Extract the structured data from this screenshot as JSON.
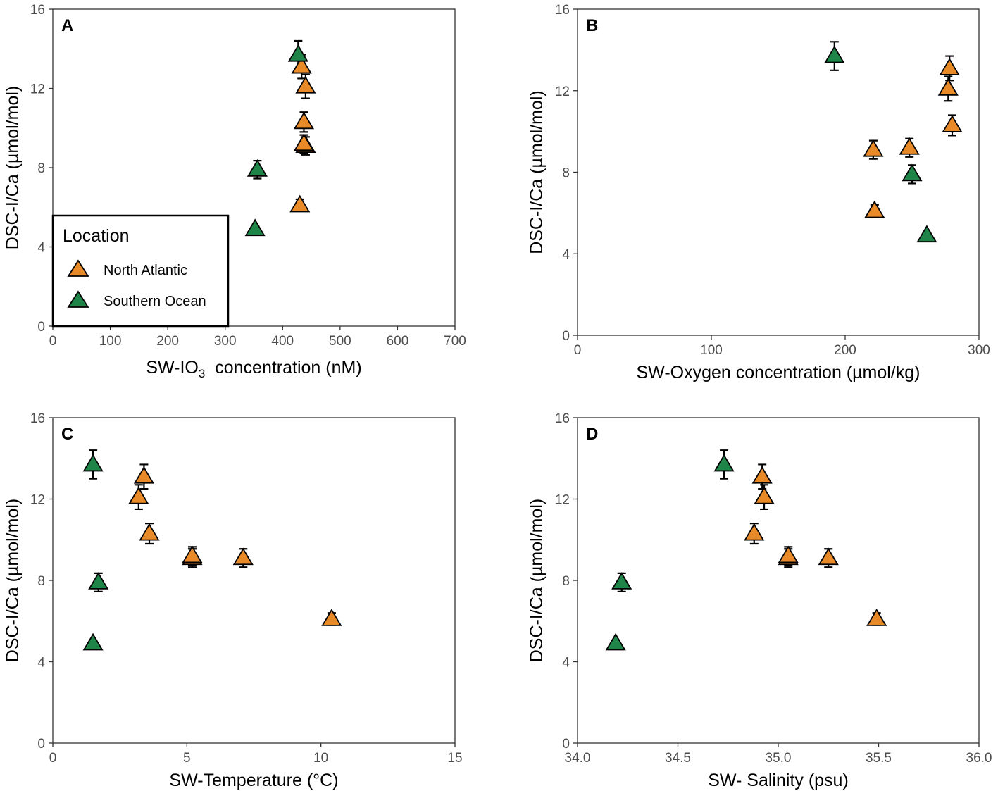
{
  "legend": {
    "title": "Location",
    "entries": [
      {
        "label": "North Atlantic",
        "color": "#E98A28"
      },
      {
        "label": "Southern Ocean",
        "color": "#1E8448"
      }
    ]
  },
  "chart_data": [
    {
      "type": "scatter",
      "panel": "A",
      "title": "",
      "xlabel": "SW-IO",
      "xlabel_sub": "3",
      "xlabel_rest": "  concentration (nM)",
      "ylabel": "DSC-I/Ca (µmol/mol)",
      "xlim": [
        0,
        700
      ],
      "ylim": [
        0,
        16
      ],
      "xticks": [
        0,
        100,
        200,
        300,
        400,
        500,
        600,
        700
      ],
      "xtick_labels": [
        "0",
        "100",
        "200",
        "300",
        "400",
        "500",
        "600",
        "700"
      ],
      "yticks": [
        0,
        4,
        8,
        12,
        16
      ],
      "ytick_labels": [
        "0",
        "4",
        "8",
        "12",
        "16"
      ],
      "legend_position": "bottom-left",
      "series": [
        {
          "name": "North Atlantic",
          "points": [
            {
              "x": 433,
              "y": 13.1,
              "err": 0.6
            },
            {
              "x": 440,
              "y": 12.1,
              "err": 0.6
            },
            {
              "x": 437,
              "y": 10.3,
              "err": 0.5
            },
            {
              "x": 440,
              "y": 9.1,
              "err": 0.45
            },
            {
              "x": 437,
              "y": 9.2,
              "err": 0.45
            },
            {
              "x": 430,
              "y": 6.1,
              "err": 0.3
            }
          ]
        },
        {
          "name": "Southern Ocean",
          "points": [
            {
              "x": 427,
              "y": 13.7,
              "err": 0.7
            },
            {
              "x": 356,
              "y": 7.9,
              "err": 0.45
            },
            {
              "x": 352,
              "y": 4.9,
              "err": 0.15
            }
          ]
        }
      ]
    },
    {
      "type": "scatter",
      "panel": "B",
      "title": "",
      "xlabel": "SW-Oxygen concentration (µmol/kg)",
      "ylabel": "DSC-I/Ca (µmol/mol)",
      "xlim": [
        0,
        300
      ],
      "ylim": [
        0,
        16
      ],
      "xticks": [
        0,
        100,
        200,
        300
      ],
      "xtick_labels": [
        "0",
        "100",
        "200",
        "300"
      ],
      "yticks": [
        0,
        4,
        8,
        12,
        16
      ],
      "ytick_labels": [
        "0",
        "4",
        "8",
        "12",
        "16"
      ],
      "series": [
        {
          "name": "North Atlantic",
          "points": [
            {
              "x": 278,
              "y": 13.1,
              "err": 0.6
            },
            {
              "x": 277,
              "y": 12.1,
              "err": 0.6
            },
            {
              "x": 280,
              "y": 10.3,
              "err": 0.5
            },
            {
              "x": 221,
              "y": 9.1,
              "err": 0.45
            },
            {
              "x": 248,
              "y": 9.2,
              "err": 0.45
            },
            {
              "x": 222,
              "y": 6.1,
              "err": 0.3
            }
          ]
        },
        {
          "name": "Southern Ocean",
          "points": [
            {
              "x": 192,
              "y": 13.7,
              "err": 0.7
            },
            {
              "x": 250,
              "y": 7.9,
              "err": 0.45
            },
            {
              "x": 261,
              "y": 4.9,
              "err": 0.15
            }
          ]
        }
      ]
    },
    {
      "type": "scatter",
      "panel": "C",
      "title": "",
      "xlabel": "SW-Temperature (°C)",
      "ylabel": "DSC-I/Ca (µmol/mol)",
      "xlim": [
        0,
        15
      ],
      "ylim": [
        0,
        16
      ],
      "xticks": [
        0,
        5,
        10,
        15
      ],
      "xtick_labels": [
        "0",
        "5",
        "10",
        "15"
      ],
      "yticks": [
        0,
        4,
        8,
        12,
        16
      ],
      "ytick_labels": [
        "0",
        "4",
        "8",
        "12",
        "16"
      ],
      "series": [
        {
          "name": "North Atlantic",
          "points": [
            {
              "x": 3.4,
              "y": 13.1,
              "err": 0.6
            },
            {
              "x": 3.2,
              "y": 12.1,
              "err": 0.6
            },
            {
              "x": 3.6,
              "y": 10.3,
              "err": 0.5
            },
            {
              "x": 5.2,
              "y": 9.1,
              "err": 0.45
            },
            {
              "x": 5.2,
              "y": 9.2,
              "err": 0.45
            },
            {
              "x": 7.1,
              "y": 9.1,
              "err": 0.45
            },
            {
              "x": 10.4,
              "y": 6.1,
              "err": 0.3
            }
          ]
        },
        {
          "name": "Southern Ocean",
          "points": [
            {
              "x": 1.5,
              "y": 13.7,
              "err": 0.7
            },
            {
              "x": 1.7,
              "y": 7.9,
              "err": 0.45
            },
            {
              "x": 1.5,
              "y": 4.9,
              "err": 0.15
            }
          ]
        }
      ]
    },
    {
      "type": "scatter",
      "panel": "D",
      "title": "",
      "xlabel": "SW- Salinity (psu)",
      "ylabel": "DSC-I/Ca (µmol/mol)",
      "xlim": [
        34.0,
        36.0
      ],
      "ylim": [
        0,
        16
      ],
      "xticks": [
        34.0,
        34.5,
        35.0,
        35.5,
        36.0
      ],
      "xtick_labels": [
        "34.0",
        "34.5",
        "35.0",
        "35.5",
        "36.0"
      ],
      "yticks": [
        0,
        4,
        8,
        12,
        16
      ],
      "ytick_labels": [
        "0",
        "4",
        "8",
        "12",
        "16"
      ],
      "series": [
        {
          "name": "North Atlantic",
          "points": [
            {
              "x": 34.92,
              "y": 13.1,
              "err": 0.6
            },
            {
              "x": 34.93,
              "y": 12.1,
              "err": 0.6
            },
            {
              "x": 34.88,
              "y": 10.3,
              "err": 0.5
            },
            {
              "x": 35.05,
              "y": 9.1,
              "err": 0.45
            },
            {
              "x": 35.05,
              "y": 9.2,
              "err": 0.45
            },
            {
              "x": 35.25,
              "y": 9.1,
              "err": 0.45
            },
            {
              "x": 35.49,
              "y": 6.1,
              "err": 0.3
            }
          ]
        },
        {
          "name": "Southern Ocean",
          "points": [
            {
              "x": 34.73,
              "y": 13.7,
              "err": 0.7
            },
            {
              "x": 34.22,
              "y": 7.9,
              "err": 0.45
            },
            {
              "x": 34.19,
              "y": 4.9,
              "err": 0.15
            }
          ]
        }
      ]
    }
  ]
}
